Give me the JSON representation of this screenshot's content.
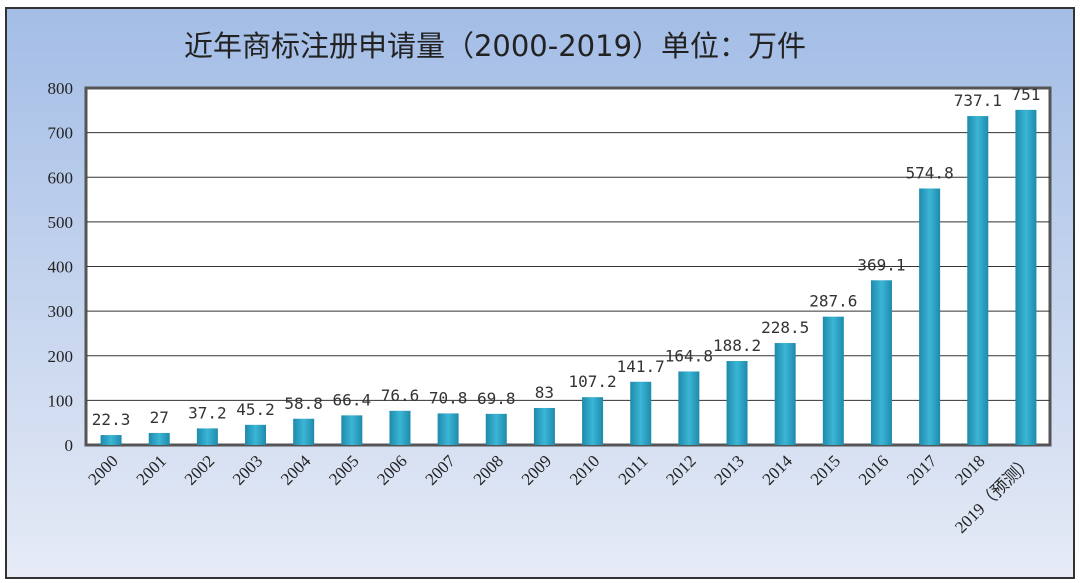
{
  "chart_data": {
    "type": "bar",
    "title": "近年商标注册申请量（2000-2019）单位：万件",
    "categories": [
      "2000",
      "2001",
      "2002",
      "2003",
      "2004",
      "2005",
      "2006",
      "2007",
      "2008",
      "2009",
      "2010",
      "2011",
      "2012",
      "2013",
      "2014",
      "2015",
      "2016",
      "2017",
      "2018",
      "2019（预测）"
    ],
    "values": [
      22.3,
      27,
      37.2,
      45.2,
      58.8,
      66.4,
      76.6,
      70.8,
      69.8,
      83,
      107.2,
      141.7,
      164.8,
      188.2,
      228.5,
      287.6,
      369.1,
      574.8,
      737.1,
      751
    ],
    "data_labels": [
      "22.3",
      "27",
      "37.2",
      "45.2",
      "58.8",
      "66.4",
      "76.6",
      "70.8",
      "69.8",
      "83",
      "107.2",
      "141.7",
      "164.8",
      "188.2",
      "228.5",
      "287.6",
      "369.1",
      "574.8",
      "737.1",
      "751"
    ],
    "ylim": [
      0,
      800
    ],
    "yticks": [
      "0",
      "100",
      "200",
      "300",
      "400",
      "500",
      "600",
      "700",
      "800"
    ],
    "xlabel": "",
    "ylabel": "",
    "grid": true,
    "legend": "none",
    "colors": {
      "bar": "#2fa3c4",
      "background": "#b0c4e8",
      "plot": "#ffffff"
    }
  }
}
